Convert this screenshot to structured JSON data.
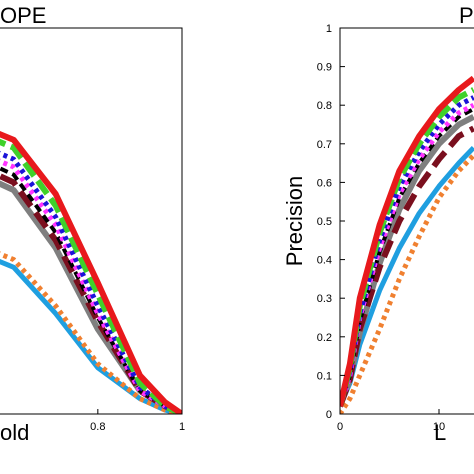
{
  "chart_data": [
    {
      "type": "line",
      "title": "OPE",
      "xlabel": "old",
      "ylabel": "",
      "xlim": [
        0.4,
        1.0
      ],
      "ylim": [
        0,
        1
      ],
      "xticks": [
        {
          "v": 0.8,
          "label": "0.8"
        },
        {
          "v": 1.0,
          "label": "1"
        }
      ],
      "grid": false,
      "series": [
        {
          "color": "#e8191c",
          "dash": "none",
          "width": 6,
          "x": [
            0.4,
            0.6,
            0.7,
            0.8,
            0.9,
            0.96,
            1.0
          ],
          "y": [
            0.8,
            0.71,
            0.57,
            0.34,
            0.1,
            0.03,
            0.0
          ]
        },
        {
          "color": "#3fd12a",
          "dash": "16 6",
          "width": 6,
          "x": [
            0.4,
            0.6,
            0.7,
            0.8,
            0.9,
            0.96,
            1.0
          ],
          "y": [
            0.78,
            0.69,
            0.54,
            0.31,
            0.08,
            0.02,
            0.0
          ]
        },
        {
          "color": "#1b14d8",
          "dash": "4 4",
          "width": 5,
          "x": [
            0.4,
            0.6,
            0.7,
            0.8,
            0.9,
            0.96,
            1.0
          ],
          "y": [
            0.75,
            0.66,
            0.51,
            0.28,
            0.07,
            0.02,
            0.0
          ]
        },
        {
          "color": "#ff33ff",
          "dash": "4 4",
          "width": 5,
          "x": [
            0.4,
            0.6,
            0.7,
            0.8,
            0.9,
            0.96,
            1.0
          ],
          "y": [
            0.73,
            0.64,
            0.49,
            0.26,
            0.06,
            0.02,
            0.0
          ]
        },
        {
          "color": "#000000",
          "dash": "8 5",
          "width": 4,
          "x": [
            0.4,
            0.6,
            0.7,
            0.8,
            0.9,
            0.96,
            1.0
          ],
          "y": [
            0.72,
            0.62,
            0.47,
            0.25,
            0.06,
            0.02,
            0.0
          ]
        },
        {
          "color": "#7a0f1e",
          "dash": "18 8",
          "width": 6,
          "x": [
            0.4,
            0.6,
            0.7,
            0.8,
            0.9,
            0.96,
            1.0
          ],
          "y": [
            0.7,
            0.6,
            0.45,
            0.24,
            0.06,
            0.02,
            0.0
          ]
        },
        {
          "color": "#7f7f7f",
          "dash": "none",
          "width": 6,
          "x": [
            0.4,
            0.6,
            0.7,
            0.8,
            0.9,
            0.96,
            1.0
          ],
          "y": [
            0.68,
            0.58,
            0.43,
            0.22,
            0.06,
            0.02,
            0.0
          ]
        },
        {
          "color": "#f08030",
          "dash": "4 4",
          "width": 5,
          "x": [
            0.4,
            0.6,
            0.7,
            0.8,
            0.9,
            0.96,
            1.0
          ],
          "y": [
            0.49,
            0.4,
            0.28,
            0.13,
            0.04,
            0.01,
            0.0
          ]
        },
        {
          "color": "#1f9fe0",
          "dash": "none",
          "width": 5,
          "x": [
            0.4,
            0.6,
            0.7,
            0.8,
            0.9,
            0.96,
            1.0
          ],
          "y": [
            0.47,
            0.38,
            0.26,
            0.12,
            0.04,
            0.01,
            0.0
          ]
        }
      ]
    },
    {
      "type": "line",
      "title": "P",
      "xlabel": "L",
      "ylabel": "Precision",
      "xlim": [
        0,
        13.5
      ],
      "ylim": [
        0,
        1
      ],
      "xticks": [
        {
          "v": 0,
          "label": "0"
        },
        {
          "v": 10,
          "label": "10"
        }
      ],
      "yticks": [
        {
          "v": 0,
          "label": "0"
        },
        {
          "v": 0.1,
          "label": "0.1"
        },
        {
          "v": 0.2,
          "label": "0.2"
        },
        {
          "v": 0.3,
          "label": "0.3"
        },
        {
          "v": 0.4,
          "label": "0.4"
        },
        {
          "v": 0.5,
          "label": "0.5"
        },
        {
          "v": 0.6,
          "label": "0.6"
        },
        {
          "v": 0.7,
          "label": "0.7"
        },
        {
          "v": 0.8,
          "label": "0.8"
        },
        {
          "v": 0.9,
          "label": "0.9"
        },
        {
          "v": 1.0,
          "label": "1"
        }
      ],
      "grid": false,
      "series": [
        {
          "color": "#e8191c",
          "dash": "none",
          "width": 6,
          "x": [
            0,
            1,
            2,
            4,
            6,
            8,
            10,
            12,
            13.5
          ],
          "y": [
            0.02,
            0.13,
            0.3,
            0.49,
            0.63,
            0.72,
            0.79,
            0.84,
            0.87
          ]
        },
        {
          "color": "#3fd12a",
          "dash": "16 6",
          "width": 6,
          "x": [
            0,
            1,
            2,
            4,
            6,
            8,
            10,
            12,
            13.5
          ],
          "y": [
            0.02,
            0.12,
            0.28,
            0.47,
            0.61,
            0.7,
            0.77,
            0.82,
            0.84
          ]
        },
        {
          "color": "#1b14d8",
          "dash": "4 4",
          "width": 5,
          "x": [
            0,
            1,
            2,
            4,
            6,
            8,
            10,
            12,
            13.5
          ],
          "y": [
            0.02,
            0.11,
            0.26,
            0.45,
            0.59,
            0.68,
            0.75,
            0.8,
            0.82
          ]
        },
        {
          "color": "#ff33ff",
          "dash": "4 4",
          "width": 5,
          "x": [
            0,
            1,
            2,
            4,
            6,
            8,
            10,
            12,
            13.5
          ],
          "y": [
            0.02,
            0.1,
            0.25,
            0.43,
            0.57,
            0.66,
            0.73,
            0.78,
            0.8
          ]
        },
        {
          "color": "#000000",
          "dash": "8 5",
          "width": 4,
          "x": [
            0,
            1,
            2,
            4,
            6,
            8,
            10,
            12,
            13.5
          ],
          "y": [
            0.02,
            0.1,
            0.24,
            0.42,
            0.56,
            0.65,
            0.72,
            0.77,
            0.79
          ]
        },
        {
          "color": "#7a0f1e",
          "dash": "18 8",
          "width": 6,
          "x": [
            0,
            1,
            2,
            4,
            6,
            8,
            10,
            12,
            13.5
          ],
          "y": [
            0.02,
            0.09,
            0.22,
            0.38,
            0.5,
            0.59,
            0.66,
            0.72,
            0.74
          ]
        },
        {
          "color": "#7f7f7f",
          "dash": "none",
          "width": 6,
          "x": [
            0,
            1,
            2,
            4,
            6,
            8,
            10,
            12,
            13.5
          ],
          "y": [
            0.02,
            0.09,
            0.21,
            0.39,
            0.53,
            0.63,
            0.7,
            0.75,
            0.77
          ]
        },
        {
          "color": "#f08030",
          "dash": "4 4",
          "width": 5,
          "x": [
            0,
            1,
            2,
            4,
            6,
            8,
            10,
            12,
            13.5
          ],
          "y": [
            0.0,
            0.04,
            0.1,
            0.22,
            0.35,
            0.46,
            0.56,
            0.63,
            0.67
          ]
        },
        {
          "color": "#1f9fe0",
          "dash": "none",
          "width": 5,
          "x": [
            0,
            1,
            2,
            4,
            6,
            8,
            10,
            12,
            13.5
          ],
          "y": [
            0.02,
            0.08,
            0.18,
            0.32,
            0.43,
            0.52,
            0.59,
            0.65,
            0.69
          ]
        }
      ]
    }
  ]
}
